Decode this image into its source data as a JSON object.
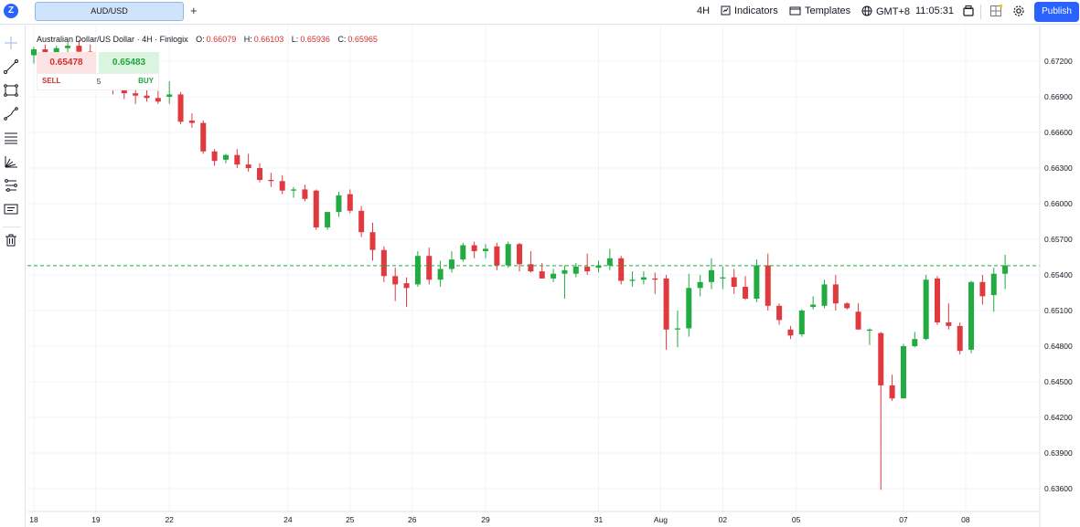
{
  "header": {
    "symbol_tab": "AUD/USD",
    "add_tab": "+",
    "interval": "4H",
    "indicators": "Indicators",
    "templates": "Templates",
    "timezone": "GMT+8",
    "clock": "11:05:31",
    "publish": "Publish"
  },
  "legend": {
    "name": "Australian Dollar/US Dollar",
    "sep1": "·",
    "interval": "4H",
    "sep2": "·",
    "source": "Finlogix",
    "o_label": "O:",
    "o": "0.66079",
    "h_label": "H:",
    "h": "0.66103",
    "l_label": "L:",
    "l": "0.65936",
    "c_label": "C:",
    "c": "0.65965"
  },
  "trade": {
    "sell_price": "0.65478",
    "buy_price": "0.65483",
    "sell_label": "SELL",
    "buy_label": "BUY",
    "quantity": "5"
  },
  "left_tools": [
    "crosshair-icon",
    "trend-line-icon",
    "rectangle-icon",
    "brush-icon",
    "fib-icon",
    "pattern-icon",
    "forecast-icon",
    "text-note-icon",
    "trash-icon"
  ],
  "colors": {
    "up": "#22ab41",
    "down": "#e0393e",
    "accent": "#2962ff",
    "last_price_line": "#22ab41"
  },
  "chart_data": {
    "type": "candlestick",
    "interval": "4H",
    "last_price": 0.65478,
    "last_price_label": "0.65478",
    "y_ticks": [
      "0.67200",
      "0.66900",
      "0.66600",
      "0.66300",
      "0.66000",
      "0.65700",
      "0.65400",
      "0.65100",
      "0.64800",
      "0.64500",
      "0.64200",
      "0.63900",
      "0.63600"
    ],
    "y_tick_values": [
      0.672,
      0.669,
      0.666,
      0.663,
      0.66,
      0.657,
      0.654,
      0.651,
      0.648,
      0.645,
      0.642,
      0.639,
      0.636
    ],
    "ylim": [
      0.6345,
      0.6735
    ],
    "x_labels": [
      {
        "label": "18",
        "index": 0
      },
      {
        "label": "19",
        "index": 5.5
      },
      {
        "label": "22",
        "index": 12
      },
      {
        "label": "24",
        "index": 22.5
      },
      {
        "label": "25",
        "index": 28
      },
      {
        "label": "26",
        "index": 33.5
      },
      {
        "label": "29",
        "index": 40
      },
      {
        "label": "31",
        "index": 50
      },
      {
        "label": "Aug",
        "index": 55.5
      },
      {
        "label": "02",
        "index": 61
      },
      {
        "label": "05",
        "index": 67.5
      },
      {
        "label": "07",
        "index": 77
      },
      {
        "label": "08",
        "index": 82.5
      }
    ],
    "candles": [
      {
        "o": 0.6725,
        "h": 0.6732,
        "l": 0.6718,
        "c": 0.673
      },
      {
        "o": 0.673,
        "h": 0.6734,
        "l": 0.6722,
        "c": 0.6727
      },
      {
        "o": 0.6727,
        "h": 0.6733,
        "l": 0.672,
        "c": 0.6731
      },
      {
        "o": 0.6731,
        "h": 0.6736,
        "l": 0.6722,
        "c": 0.6733
      },
      {
        "o": 0.6733,
        "h": 0.6738,
        "l": 0.6724,
        "c": 0.6728
      },
      {
        "o": 0.6728,
        "h": 0.6734,
        "l": 0.67,
        "c": 0.6704
      },
      {
        "o": 0.6704,
        "h": 0.6712,
        "l": 0.6696,
        "c": 0.67
      },
      {
        "o": 0.67,
        "h": 0.6708,
        "l": 0.6692,
        "c": 0.6697
      },
      {
        "o": 0.6697,
        "h": 0.6704,
        "l": 0.6688,
        "c": 0.6693
      },
      {
        "o": 0.6693,
        "h": 0.67,
        "l": 0.6684,
        "c": 0.6691
      },
      {
        "o": 0.6691,
        "h": 0.67,
        "l": 0.6686,
        "c": 0.6689
      },
      {
        "o": 0.6689,
        "h": 0.6695,
        "l": 0.6684,
        "c": 0.6686
      },
      {
        "o": 0.669,
        "h": 0.6703,
        "l": 0.6684,
        "c": 0.6692
      },
      {
        "o": 0.6692,
        "h": 0.6694,
        "l": 0.6667,
        "c": 0.6669
      },
      {
        "o": 0.667,
        "h": 0.6676,
        "l": 0.6664,
        "c": 0.6668
      },
      {
        "o": 0.6668,
        "h": 0.667,
        "l": 0.6642,
        "c": 0.6644
      },
      {
        "o": 0.6644,
        "h": 0.6646,
        "l": 0.6632,
        "c": 0.6636
      },
      {
        "o": 0.6637,
        "h": 0.6642,
        "l": 0.6634,
        "c": 0.6641
      },
      {
        "o": 0.6641,
        "h": 0.6646,
        "l": 0.663,
        "c": 0.6633
      },
      {
        "o": 0.6633,
        "h": 0.6642,
        "l": 0.6627,
        "c": 0.663
      },
      {
        "o": 0.663,
        "h": 0.6634,
        "l": 0.6618,
        "c": 0.662
      },
      {
        "o": 0.662,
        "h": 0.6626,
        "l": 0.6614,
        "c": 0.6619
      },
      {
        "o": 0.6619,
        "h": 0.6624,
        "l": 0.6608,
        "c": 0.6611
      },
      {
        "o": 0.6611,
        "h": 0.6614,
        "l": 0.6605,
        "c": 0.6612
      },
      {
        "o": 0.6612,
        "h": 0.6616,
        "l": 0.6602,
        "c": 0.6604
      },
      {
        "o": 0.6611,
        "h": 0.6612,
        "l": 0.6578,
        "c": 0.658
      },
      {
        "o": 0.658,
        "h": 0.659,
        "l": 0.6578,
        "c": 0.6593
      },
      {
        "o": 0.6593,
        "h": 0.661,
        "l": 0.6589,
        "c": 0.6607
      },
      {
        "o": 0.6608,
        "h": 0.6612,
        "l": 0.6592,
        "c": 0.6594
      },
      {
        "o": 0.6594,
        "h": 0.6598,
        "l": 0.6572,
        "c": 0.6576
      },
      {
        "o": 0.6576,
        "h": 0.6584,
        "l": 0.6552,
        "c": 0.6561
      },
      {
        "o": 0.6561,
        "h": 0.6564,
        "l": 0.6534,
        "c": 0.6539
      },
      {
        "o": 0.6539,
        "h": 0.6546,
        "l": 0.6518,
        "c": 0.6532
      },
      {
        "o": 0.6533,
        "h": 0.6538,
        "l": 0.6513,
        "c": 0.6529
      },
      {
        "o": 0.6532,
        "h": 0.656,
        "l": 0.653,
        "c": 0.6556
      },
      {
        "o": 0.6556,
        "h": 0.6563,
        "l": 0.6532,
        "c": 0.6536
      },
      {
        "o": 0.6536,
        "h": 0.6552,
        "l": 0.653,
        "c": 0.6545
      },
      {
        "o": 0.6545,
        "h": 0.656,
        "l": 0.6542,
        "c": 0.6553
      },
      {
        "o": 0.6553,
        "h": 0.6567,
        "l": 0.6551,
        "c": 0.6565
      },
      {
        "o": 0.6565,
        "h": 0.6568,
        "l": 0.6554,
        "c": 0.656
      },
      {
        "o": 0.656,
        "h": 0.6566,
        "l": 0.6554,
        "c": 0.6562
      },
      {
        "o": 0.6564,
        "h": 0.6567,
        "l": 0.6544,
        "c": 0.6548
      },
      {
        "o": 0.6548,
        "h": 0.6568,
        "l": 0.6546,
        "c": 0.6566
      },
      {
        "o": 0.6566,
        "h": 0.6567,
        "l": 0.6543,
        "c": 0.6549
      },
      {
        "o": 0.6549,
        "h": 0.656,
        "l": 0.6542,
        "c": 0.6543
      },
      {
        "o": 0.6543,
        "h": 0.655,
        "l": 0.654,
        "c": 0.6537
      },
      {
        "o": 0.6537,
        "h": 0.6545,
        "l": 0.6534,
        "c": 0.6541
      },
      {
        "o": 0.6541,
        "h": 0.6548,
        "l": 0.652,
        "c": 0.6544
      },
      {
        "o": 0.6541,
        "h": 0.655,
        "l": 0.6538,
        "c": 0.6547
      },
      {
        "o": 0.6547,
        "h": 0.6558,
        "l": 0.654,
        "c": 0.6543
      },
      {
        "o": 0.6546,
        "h": 0.6552,
        "l": 0.6542,
        "c": 0.6548
      },
      {
        "o": 0.6548,
        "h": 0.6562,
        "l": 0.6544,
        "c": 0.6554
      },
      {
        "o": 0.6554,
        "h": 0.6556,
        "l": 0.6532,
        "c": 0.6535
      },
      {
        "o": 0.6535,
        "h": 0.6543,
        "l": 0.653,
        "c": 0.6536
      },
      {
        "o": 0.6536,
        "h": 0.6543,
        "l": 0.6532,
        "c": 0.6538
      },
      {
        "o": 0.6537,
        "h": 0.6542,
        "l": 0.6524,
        "c": 0.6536
      },
      {
        "o": 0.6537,
        "h": 0.654,
        "l": 0.6477,
        "c": 0.6494
      },
      {
        "o": 0.6494,
        "h": 0.651,
        "l": 0.6479,
        "c": 0.6495
      },
      {
        "o": 0.6495,
        "h": 0.6541,
        "l": 0.6488,
        "c": 0.6529
      },
      {
        "o": 0.6529,
        "h": 0.654,
        "l": 0.6522,
        "c": 0.6534
      },
      {
        "o": 0.6534,
        "h": 0.6554,
        "l": 0.6528,
        "c": 0.6544
      },
      {
        "o": 0.6537,
        "h": 0.6547,
        "l": 0.6528,
        "c": 0.6538
      },
      {
        "o": 0.6538,
        "h": 0.6545,
        "l": 0.6524,
        "c": 0.653
      },
      {
        "o": 0.653,
        "h": 0.6539,
        "l": 0.6519,
        "c": 0.652
      },
      {
        "o": 0.652,
        "h": 0.6553,
        "l": 0.6517,
        "c": 0.6548
      },
      {
        "o": 0.6548,
        "h": 0.6558,
        "l": 0.651,
        "c": 0.6514
      },
      {
        "o": 0.6514,
        "h": 0.6516,
        "l": 0.6498,
        "c": 0.6502
      },
      {
        "o": 0.6494,
        "h": 0.6497,
        "l": 0.6486,
        "c": 0.6489
      },
      {
        "o": 0.649,
        "h": 0.6511,
        "l": 0.6488,
        "c": 0.651
      },
      {
        "o": 0.6513,
        "h": 0.6522,
        "l": 0.6511,
        "c": 0.6515
      },
      {
        "o": 0.6514,
        "h": 0.6536,
        "l": 0.6512,
        "c": 0.6532
      },
      {
        "o": 0.6532,
        "h": 0.654,
        "l": 0.651,
        "c": 0.6516
      },
      {
        "o": 0.6516,
        "h": 0.6517,
        "l": 0.6511,
        "c": 0.6512
      },
      {
        "o": 0.6509,
        "h": 0.6516,
        "l": 0.6496,
        "c": 0.6494
      },
      {
        "o": 0.6493,
        "h": 0.6495,
        "l": 0.6481,
        "c": 0.6494
      },
      {
        "o": 0.6491,
        "h": 0.6492,
        "l": 0.6359,
        "c": 0.6447
      },
      {
        "o": 0.6447,
        "h": 0.6456,
        "l": 0.6434,
        "c": 0.6436
      },
      {
        "o": 0.6436,
        "h": 0.6482,
        "l": 0.6436,
        "c": 0.648
      },
      {
        "o": 0.648,
        "h": 0.6492,
        "l": 0.6479,
        "c": 0.6486
      },
      {
        "o": 0.6486,
        "h": 0.654,
        "l": 0.6485,
        "c": 0.6536
      },
      {
        "o": 0.6537,
        "h": 0.6539,
        "l": 0.6498,
        "c": 0.65
      },
      {
        "o": 0.65,
        "h": 0.6516,
        "l": 0.6494,
        "c": 0.6497
      },
      {
        "o": 0.6497,
        "h": 0.65,
        "l": 0.6473,
        "c": 0.6476
      },
      {
        "o": 0.6477,
        "h": 0.6535,
        "l": 0.6474,
        "c": 0.6534
      },
      {
        "o": 0.6534,
        "h": 0.654,
        "l": 0.6515,
        "c": 0.6522
      },
      {
        "o": 0.6523,
        "h": 0.6546,
        "l": 0.6509,
        "c": 0.6541
      },
      {
        "o": 0.6541,
        "h": 0.6557,
        "l": 0.6528,
        "c": 0.6548
      }
    ]
  }
}
